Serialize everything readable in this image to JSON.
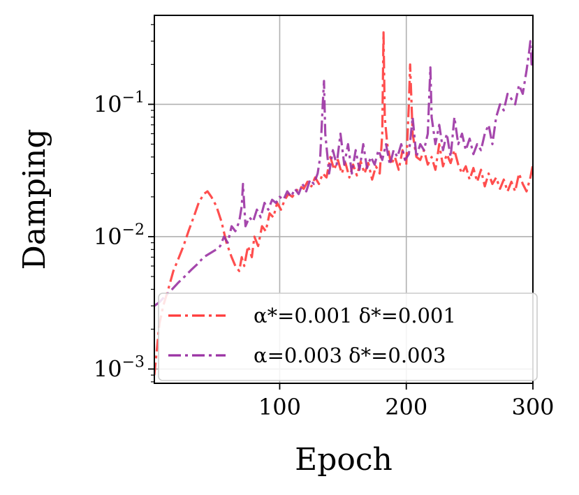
{
  "chart_data": {
    "type": "line",
    "xlabel": "Epoch",
    "ylabel": "Damping",
    "xlim": [
      1,
      300
    ],
    "ylim": [
      0.00078,
      0.47
    ],
    "yscale": "log",
    "grid": true,
    "legend_position": "lower-right",
    "x_ticks": [
      {
        "value": 100,
        "label": "100"
      },
      {
        "value": 200,
        "label": "200"
      },
      {
        "value": 300,
        "label": "300"
      }
    ],
    "y_ticks": [
      {
        "value": 0.001,
        "base": "10",
        "exp": "−3"
      },
      {
        "value": 0.01,
        "base": "10",
        "exp": "−2"
      },
      {
        "value": 0.1,
        "base": "10",
        "exp": "−1"
      }
    ],
    "series": [
      {
        "name": "α*=0.001 δ*=0.001",
        "color": "#ff3b3b",
        "style": "dashdot",
        "points": [
          [
            1,
            0.0009
          ],
          [
            3,
            0.0014
          ],
          [
            5,
            0.0022
          ],
          [
            8,
            0.003
          ],
          [
            12,
            0.004
          ],
          [
            16,
            0.0055
          ],
          [
            20,
            0.0068
          ],
          [
            24,
            0.0085
          ],
          [
            28,
            0.011
          ],
          [
            32,
            0.014
          ],
          [
            36,
            0.018
          ],
          [
            40,
            0.021
          ],
          [
            43,
            0.022
          ],
          [
            46,
            0.02
          ],
          [
            50,
            0.017
          ],
          [
            54,
            0.013
          ],
          [
            58,
            0.009
          ],
          [
            62,
            0.007
          ],
          [
            65,
            0.006
          ],
          [
            68,
            0.0055
          ],
          [
            70,
            0.007
          ],
          [
            72,
            0.006
          ],
          [
            75,
            0.0085
          ],
          [
            78,
            0.007
          ],
          [
            80,
            0.01
          ],
          [
            83,
            0.0085
          ],
          [
            86,
            0.012
          ],
          [
            89,
            0.011
          ],
          [
            92,
            0.015
          ],
          [
            95,
            0.014
          ],
          [
            98,
            0.018
          ],
          [
            101,
            0.016
          ],
          [
            104,
            0.019
          ],
          [
            107,
            0.021
          ],
          [
            110,
            0.02
          ],
          [
            113,
            0.022
          ],
          [
            116,
            0.024
          ],
          [
            119,
            0.023
          ],
          [
            122,
            0.026
          ],
          [
            125,
            0.024
          ],
          [
            128,
            0.028
          ],
          [
            131,
            0.025
          ],
          [
            134,
            0.03
          ],
          [
            137,
            0.028
          ],
          [
            140,
            0.04
          ],
          [
            143,
            0.032
          ],
          [
            146,
            0.038
          ],
          [
            149,
            0.03
          ],
          [
            152,
            0.036
          ],
          [
            155,
            0.028
          ],
          [
            158,
            0.035
          ],
          [
            161,
            0.029
          ],
          [
            164,
            0.037
          ],
          [
            167,
            0.03
          ],
          [
            170,
            0.036
          ],
          [
            173,
            0.027
          ],
          [
            176,
            0.034
          ],
          [
            179,
            0.03
          ],
          [
            181,
            0.06
          ],
          [
            182,
            0.35
          ],
          [
            183,
            0.08
          ],
          [
            185,
            0.05
          ],
          [
            188,
            0.035
          ],
          [
            191,
            0.04
          ],
          [
            194,
            0.032
          ],
          [
            197,
            0.045
          ],
          [
            200,
            0.035
          ],
          [
            202,
            0.1
          ],
          [
            203,
            0.2
          ],
          [
            205,
            0.06
          ],
          [
            208,
            0.04
          ],
          [
            211,
            0.038
          ],
          [
            214,
            0.045
          ],
          [
            217,
            0.035
          ],
          [
            220,
            0.04
          ],
          [
            223,
            0.032
          ],
          [
            226,
            0.05
          ],
          [
            229,
            0.034
          ],
          [
            232,
            0.042
          ],
          [
            235,
            0.036
          ],
          [
            238,
            0.045
          ],
          [
            241,
            0.035
          ],
          [
            244,
            0.03
          ],
          [
            247,
            0.034
          ],
          [
            250,
            0.027
          ],
          [
            253,
            0.033
          ],
          [
            256,
            0.026
          ],
          [
            259,
            0.032
          ],
          [
            262,
            0.024
          ],
          [
            265,
            0.03
          ],
          [
            268,
            0.025
          ],
          [
            271,
            0.028
          ],
          [
            274,
            0.023
          ],
          [
            277,
            0.027
          ],
          [
            280,
            0.022
          ],
          [
            283,
            0.026
          ],
          [
            286,
            0.022
          ],
          [
            289,
            0.03
          ],
          [
            292,
            0.025
          ],
          [
            295,
            0.022
          ],
          [
            298,
            0.028
          ],
          [
            300,
            0.035
          ]
        ]
      },
      {
        "name": "α=0.003 δ*=0.003",
        "color": "#9b33a3",
        "style": "dashdot",
        "points": [
          [
            1,
            0.003
          ],
          [
            5,
            0.0032
          ],
          [
            10,
            0.0036
          ],
          [
            15,
            0.004
          ],
          [
            20,
            0.0045
          ],
          [
            25,
            0.005
          ],
          [
            30,
            0.0056
          ],
          [
            35,
            0.0062
          ],
          [
            40,
            0.007
          ],
          [
            45,
            0.0075
          ],
          [
            50,
            0.008
          ],
          [
            53,
            0.0085
          ],
          [
            56,
            0.01
          ],
          [
            59,
            0.009
          ],
          [
            62,
            0.012
          ],
          [
            65,
            0.011
          ],
          [
            68,
            0.013
          ],
          [
            70,
            0.017
          ],
          [
            71,
            0.025
          ],
          [
            73,
            0.012
          ],
          [
            76,
            0.014
          ],
          [
            79,
            0.013
          ],
          [
            82,
            0.016
          ],
          [
            85,
            0.014
          ],
          [
            88,
            0.018
          ],
          [
            91,
            0.016
          ],
          [
            94,
            0.019
          ],
          [
            97,
            0.018
          ],
          [
            100,
            0.02
          ],
          [
            103,
            0.019
          ],
          [
            106,
            0.022
          ],
          [
            109,
            0.02
          ],
          [
            112,
            0.023
          ],
          [
            115,
            0.021
          ],
          [
            118,
            0.025
          ],
          [
            121,
            0.022
          ],
          [
            124,
            0.027
          ],
          [
            127,
            0.025
          ],
          [
            130,
            0.03
          ],
          [
            132,
            0.04
          ],
          [
            134,
            0.1
          ],
          [
            135,
            0.15
          ],
          [
            136,
            0.06
          ],
          [
            139,
            0.03
          ],
          [
            142,
            0.045
          ],
          [
            145,
            0.035
          ],
          [
            148,
            0.06
          ],
          [
            151,
            0.035
          ],
          [
            154,
            0.05
          ],
          [
            157,
            0.03
          ],
          [
            160,
            0.045
          ],
          [
            163,
            0.032
          ],
          [
            166,
            0.05
          ],
          [
            169,
            0.033
          ],
          [
            172,
            0.04
          ],
          [
            175,
            0.035
          ],
          [
            178,
            0.045
          ],
          [
            181,
            0.038
          ],
          [
            184,
            0.05
          ],
          [
            187,
            0.035
          ],
          [
            190,
            0.045
          ],
          [
            193,
            0.04
          ],
          [
            196,
            0.05
          ],
          [
            199,
            0.038
          ],
          [
            202,
            0.042
          ],
          [
            205,
            0.08
          ],
          [
            208,
            0.04
          ],
          [
            211,
            0.05
          ],
          [
            214,
            0.045
          ],
          [
            217,
            0.06
          ],
          [
            219,
            0.19
          ],
          [
            220,
            0.08
          ],
          [
            223,
            0.05
          ],
          [
            226,
            0.07
          ],
          [
            229,
            0.045
          ],
          [
            232,
            0.06
          ],
          [
            235,
            0.04
          ],
          [
            238,
            0.08
          ],
          [
            241,
            0.05
          ],
          [
            244,
            0.06
          ],
          [
            247,
            0.045
          ],
          [
            250,
            0.055
          ],
          [
            253,
            0.042
          ],
          [
            256,
            0.05
          ],
          [
            259,
            0.045
          ],
          [
            262,
            0.06
          ],
          [
            265,
            0.07
          ],
          [
            268,
            0.05
          ],
          [
            271,
            0.08
          ],
          [
            274,
            0.1
          ],
          [
            277,
            0.09
          ],
          [
            280,
            0.12
          ],
          [
            283,
            0.11
          ],
          [
            286,
            0.1
          ],
          [
            289,
            0.14
          ],
          [
            292,
            0.12
          ],
          [
            295,
            0.18
          ],
          [
            297,
            0.25
          ],
          [
            298,
            0.3
          ],
          [
            299,
            0.2
          ],
          [
            300,
            0.26
          ]
        ]
      }
    ]
  }
}
